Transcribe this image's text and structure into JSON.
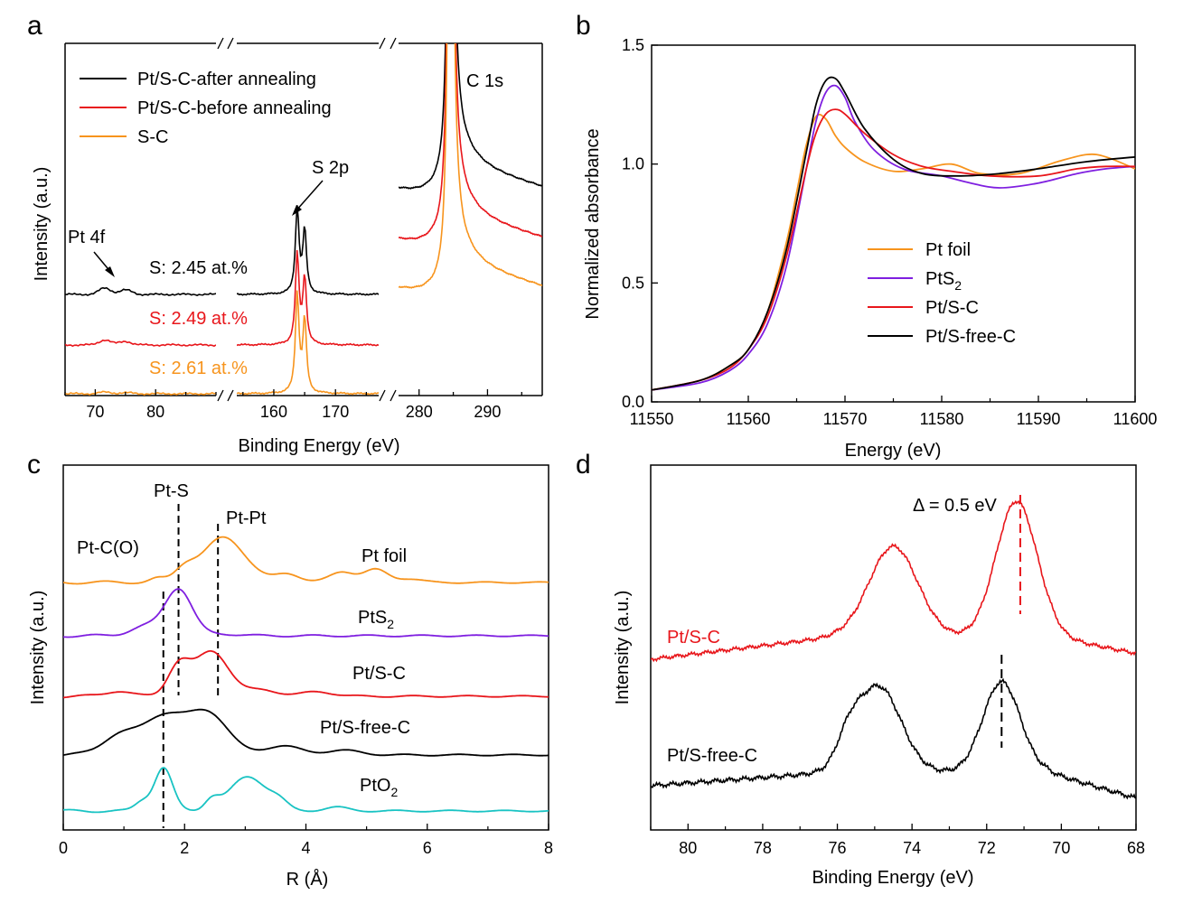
{
  "panel_labels": [
    "a",
    "b",
    "c",
    "d"
  ],
  "colors": {
    "black": "#000000",
    "red": "#e8161b",
    "orange": "#f7941d",
    "purple": "#7f1fe0",
    "cyan": "#19c3c3"
  },
  "chart_data": [
    {
      "panel": "a",
      "type": "line",
      "xlabel": "Binding Energy (eV)",
      "ylabel": "Intensity (a.u.)",
      "x_axis_break": true,
      "segments": [
        {
          "xlim": [
            65,
            90
          ],
          "ticks": [
            70,
            80
          ]
        },
        {
          "xlim": [
            154,
            177
          ],
          "ticks": [
            160,
            170
          ]
        },
        {
          "xlim": [
            277,
            298
          ],
          "ticks": [
            280,
            290
          ]
        }
      ],
      "series": [
        {
          "name": "Pt/S-C-after annealing",
          "color": "#000000",
          "offset": 2
        },
        {
          "name": "Pt/S-C-before annealing",
          "color": "#e8161b",
          "offset": 1
        },
        {
          "name": "S-C",
          "color": "#f7941d",
          "offset": 0
        }
      ],
      "peaks": {
        "Pt 4f": [
          71.5,
          75
        ],
        "S 2p": [
          163.8,
          165.2
        ],
        "C 1s": 284.6
      },
      "annotations": [
        "Pt 4f",
        "S 2p",
        "C 1s"
      ],
      "composition_labels": [
        {
          "text": "S: 2.45 at.%",
          "color": "#000000"
        },
        {
          "text": "S: 2.49 at.%",
          "color": "#e8161b"
        },
        {
          "text": "S: 2.61 at.%",
          "color": "#f7941d"
        }
      ],
      "legend": "top-left"
    },
    {
      "panel": "b",
      "type": "line",
      "xlabel": "Energy (eV)",
      "ylabel": "Normalized absorbance",
      "xlim": [
        11550,
        11600
      ],
      "ylim": [
        0,
        1.5
      ],
      "xticks": [
        11550,
        11560,
        11570,
        11580,
        11590,
        11600
      ],
      "yticks": [
        0.0,
        0.5,
        1.0,
        1.5
      ],
      "ytick_labels": [
        "0.0",
        "0.5",
        "1.0",
        "1.5"
      ],
      "legend": "center-right",
      "series": [
        {
          "name": "Pt foil",
          "legend_base": "Pt foil",
          "legend_sub": "",
          "color": "#f7941d",
          "x": [
            11550,
            11555,
            11558,
            11560,
            11562,
            11564,
            11565,
            11566,
            11567,
            11568,
            11569,
            11570,
            11572,
            11575,
            11578,
            11581,
            11584,
            11588,
            11592,
            11595,
            11597,
            11600
          ],
          "y": [
            0.05,
            0.09,
            0.15,
            0.22,
            0.38,
            0.68,
            0.88,
            1.08,
            1.2,
            1.19,
            1.12,
            1.07,
            1.01,
            0.97,
            0.98,
            1.0,
            0.96,
            0.96,
            1.01,
            1.04,
            1.03,
            0.98
          ]
        },
        {
          "name": "PtS2",
          "legend_base": "PtS",
          "legend_sub": "2",
          "color": "#7f1fe0",
          "x": [
            11550,
            11555,
            11558,
            11560,
            11562,
            11564,
            11566,
            11567,
            11568,
            11569,
            11570,
            11571,
            11573,
            11576,
            11580,
            11583,
            11586,
            11590,
            11594,
            11597,
            11600
          ],
          "y": [
            0.05,
            0.08,
            0.13,
            0.2,
            0.33,
            0.58,
            0.98,
            1.18,
            1.3,
            1.33,
            1.28,
            1.18,
            1.06,
            0.98,
            0.95,
            0.92,
            0.9,
            0.92,
            0.96,
            0.98,
            0.99
          ]
        },
        {
          "name": "Pt/S-C",
          "legend_base": "Pt/S-C",
          "legend_sub": "",
          "color": "#e8161b",
          "x": [
            11550,
            11555,
            11558,
            11560,
            11562,
            11564,
            11566,
            11567,
            11568,
            11569,
            11570,
            11572,
            11575,
            11578,
            11581,
            11585,
            11590,
            11594,
            11597,
            11600
          ],
          "y": [
            0.05,
            0.09,
            0.14,
            0.22,
            0.36,
            0.62,
            0.98,
            1.13,
            1.21,
            1.23,
            1.21,
            1.13,
            1.04,
            0.99,
            0.97,
            0.95,
            0.95,
            0.98,
            0.99,
            0.99
          ]
        },
        {
          "name": "Pt/S-free-C",
          "legend_base": "Pt/S-free-C",
          "legend_sub": "",
          "color": "#000000",
          "x": [
            11550,
            11555,
            11558,
            11560,
            11562,
            11564,
            11566,
            11567,
            11568,
            11569,
            11570,
            11572,
            11575,
            11578,
            11582,
            11586,
            11590,
            11595,
            11600
          ],
          "y": [
            0.05,
            0.09,
            0.15,
            0.22,
            0.38,
            0.65,
            1.05,
            1.25,
            1.35,
            1.36,
            1.3,
            1.15,
            1.02,
            0.96,
            0.95,
            0.96,
            0.98,
            1.01,
            1.03
          ]
        }
      ]
    },
    {
      "panel": "c",
      "type": "line",
      "xlabel": "R (Å)",
      "ylabel": "Intensity (a.u.)",
      "xlim": [
        0,
        8
      ],
      "xticks": [
        0,
        2,
        4,
        6,
        8
      ],
      "reference_lines": [
        {
          "label": "Pt-C(O)",
          "x": 1.65
        },
        {
          "label": "Pt-S",
          "x": 1.9
        },
        {
          "label": "Pt-Pt",
          "x": 2.55
        }
      ],
      "series": [
        {
          "name": "Pt foil",
          "label_base": "Pt foil",
          "label_sub": "",
          "color": "#f7941d",
          "offset": 4
        },
        {
          "name": "PtS2",
          "label_base": "PtS",
          "label_sub": "2",
          "color": "#7f1fe0",
          "offset": 3
        },
        {
          "name": "Pt/S-C",
          "label_base": "Pt/S-C",
          "label_sub": "",
          "color": "#e8161b",
          "offset": 2
        },
        {
          "name": "Pt/S-free-C",
          "label_base": "Pt/S-free-C",
          "label_sub": "",
          "color": "#000000",
          "offset": 1
        },
        {
          "name": "PtO2",
          "label_base": "PtO",
          "label_sub": "2",
          "color": "#19c3c3",
          "offset": 0
        }
      ]
    },
    {
      "panel": "d",
      "type": "line",
      "xlabel": "Binding Energy (eV)",
      "ylabel": "Intensity (a.u.)",
      "xlim": [
        81,
        68
      ],
      "xticks": [
        80,
        78,
        76,
        74,
        72,
        70,
        68
      ],
      "annotation": "Δ = 0.5 eV",
      "series": [
        {
          "name": "Pt/S-C",
          "color": "#e8161b",
          "offset": 1,
          "peaks": [
            74.5,
            71.1
          ]
        },
        {
          "name": "Pt/S-free-C",
          "color": "#000000",
          "offset": 0,
          "peaks": [
            74.8,
            71.6
          ]
        }
      ]
    }
  ]
}
